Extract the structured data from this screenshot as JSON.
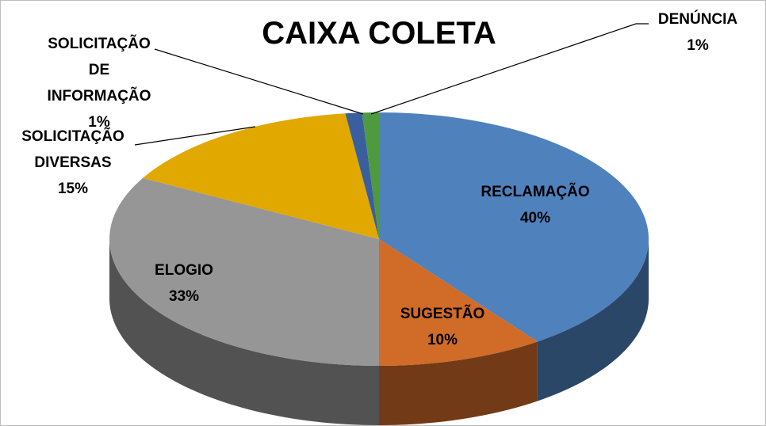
{
  "chart_data": {
    "type": "pie",
    "title": "CAIXA COLETA",
    "categories": [
      "RECLAMAÇÃO",
      "SUGESTÃO",
      "ELOGIO",
      "SOLICITAÇÃO DIVERSAS",
      "SOLICITAÇÃO DE INFORMAÇÃO",
      "DENÚNCIA"
    ],
    "values": [
      40,
      10,
      33,
      15,
      1,
      1
    ],
    "value_labels": [
      "40%",
      "10%",
      "33%",
      "15%",
      "1%",
      "1%"
    ],
    "colors": [
      "#4f81bd",
      "#d06b28",
      "#969696",
      "#e1a800",
      "#3a5f9f",
      "#4f9a3f"
    ]
  }
}
